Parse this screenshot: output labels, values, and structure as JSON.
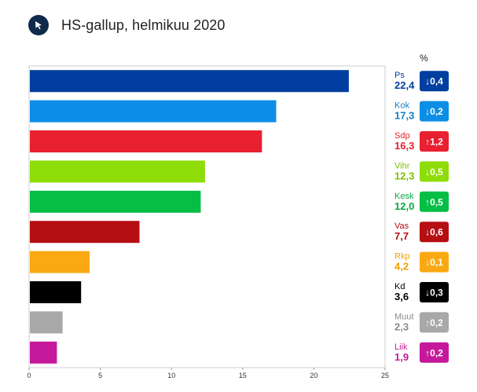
{
  "header": {
    "logo_icon": "cursor-arrow-icon",
    "title": "HS-gallup, helmikuu 2020"
  },
  "chart_data": {
    "type": "bar",
    "orientation": "horizontal",
    "title": "HS-gallup, helmikuu 2020",
    "change_header": "%",
    "xlim": [
      0,
      25
    ],
    "xticks": [
      0,
      5,
      10,
      15,
      20,
      25
    ],
    "grid": false,
    "categories": [
      "Ps",
      "Kok",
      "Sdp",
      "Vihr",
      "Kesk",
      "Vas",
      "Rkp",
      "Kd",
      "Muut",
      "Liik"
    ],
    "values": [
      22.4,
      17.3,
      16.3,
      12.3,
      12.0,
      7.7,
      4.2,
      3.6,
      2.3,
      1.9
    ],
    "value_labels": [
      "22,4",
      "17,3",
      "16,3",
      "12,3",
      "12,0",
      "7,7",
      "4,2",
      "3,6",
      "2,3",
      "1,9"
    ],
    "changes": [
      "↓0,4",
      "↓0,2",
      "↑1,2",
      "↓0,5",
      "↑0,5",
      "↓0,6",
      "↓0,1",
      "↓0,3",
      "↑0,2",
      "↑0,2"
    ],
    "colors": [
      "#003f9f",
      "#0c8ee6",
      "#e8202f",
      "#8edc08",
      "#05be46",
      "#b50e13",
      "#fba912",
      "#000000",
      "#a8a8a8",
      "#c5189a"
    ],
    "label_colors": [
      "#003f9f",
      "#0c7fd0",
      "#e8202f",
      "#7cc100",
      "#04a83f",
      "#b50e13",
      "#f0a000",
      "#000000",
      "#8a8a8a",
      "#c5189a"
    ]
  }
}
